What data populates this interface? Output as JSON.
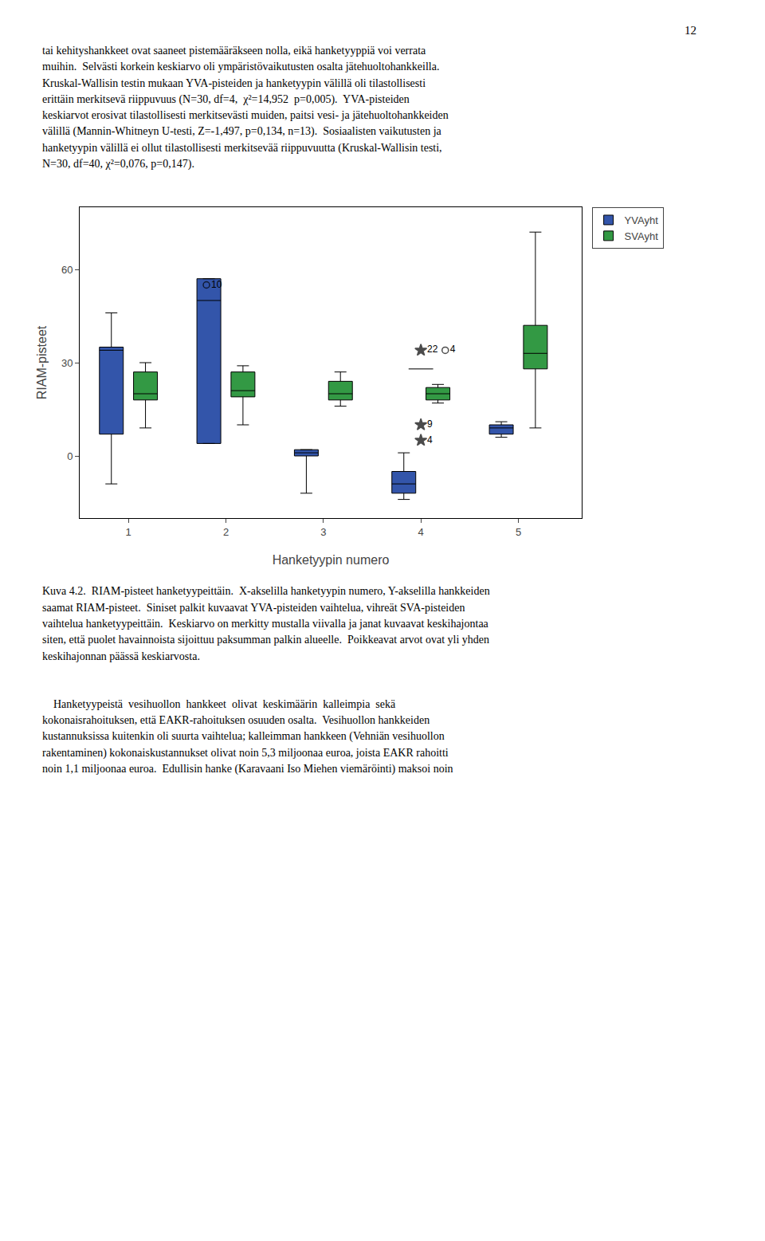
{
  "chart_data": {
    "type": "box",
    "xlabel": "Hanketyypin numero",
    "ylabel": "RIAM-pisteet",
    "x": [
      1,
      2,
      3,
      4,
      5
    ],
    "xlim": [
      0.5,
      5.65
    ],
    "xticks": [
      1,
      2,
      3,
      4,
      5
    ],
    "ylim": [
      -20,
      80
    ],
    "yticks": [
      0,
      30,
      60
    ],
    "grid": false,
    "legend": "upper right",
    "series": [
      {
        "name": "YVAyht",
        "color": "#3355aa",
        "q1": [
          7,
          4,
          0,
          -12,
          7
        ],
        "median": [
          34,
          50,
          1,
          -9,
          9
        ],
        "q3": [
          35,
          57,
          2,
          -5,
          10
        ],
        "whislo": [
          -9,
          4,
          -12,
          -14,
          6
        ],
        "whishi": [
          46,
          57,
          2,
          1,
          11
        ]
      },
      {
        "name": "SVAyht",
        "color": "#339944",
        "q1": [
          18,
          19,
          18,
          18,
          28
        ],
        "median": [
          20,
          21,
          20,
          20,
          33
        ],
        "q3": [
          27,
          27,
          24,
          22,
          42
        ],
        "whislo": [
          9,
          10,
          16,
          17,
          9
        ],
        "whishi": [
          30,
          29,
          27,
          23,
          72
        ]
      }
    ],
    "outliers": [
      {
        "group": 2,
        "y": 55,
        "label": "10",
        "marker": "circle"
      },
      {
        "group": 4,
        "y": 34,
        "label": "22",
        "marker": "star"
      },
      {
        "group": 4,
        "y": 34,
        "label": "4",
        "marker": "circle"
      },
      {
        "group": 4,
        "y": 28,
        "marker": "line"
      },
      {
        "group": 4,
        "y": 10,
        "label": "9",
        "marker": "star"
      },
      {
        "group": 4,
        "y": 5,
        "label": "4",
        "marker": "star"
      }
    ]
  },
  "page_number": "12",
  "top_text": "tai kehityshankkeet ovat saaneet pistemääräkseen nolla, eikä hanketyyppiä voi verrata\nmuihin.  Selvästi korkein keskiarvo oli ympäristövaikutusten osalta jätehuoltohankkeilla.\nKruskal-Wallisin testin mukaan YVA-pisteiden ja hanketyypin välillä oli tilastollisesti\nerittäin merkitsevä riippuvuus (N=30, df=4,  χ²=14,952  p=0,005).  YVA-pisteiden\nkeskiarvot erosivat tilastollisesti merkitsevästi muiden, paitsi vesi- ja jätehuoltohankkeiden\nvälillä (Mannin-Whitneyn U-testi, Z=-1,497, p=0,134, n=13).  Sosiaalisten vaikutusten ja\nhanketyypin välillä ei ollut tilastollisesti merkitsevää riippuvuutta (Kruskal-Wallisin testi,\nN=30, df=40, χ²=0,076, p=0,147).",
  "caption_text": "Kuva 4.2.  RIAM-pisteet hanketyypeittäin.  X-akselilla hanketyypin numero, Y-akselilla hankkeiden\nsaamat RIAM-pisteet.  Siniset palkit kuvaavat YVA-pisteiden vaihtelua, vihreät SVA-pisteiden\nvaihtelua hanketyypeittäin.  Keskiarvo on merkitty mustalla viivalla ja janat kuvaavat keskihajontaa\nsiten, että puolet havainnoista sijoittuu paksumman palkin alueelle.  Poikkeavat arvot ovat yli yhden\nkeskihajonnan päässä keskiarvosta.",
  "bottom_text": "    Hanketyypeistä  vesihuollon  hankkeet  olivat  keskimäärin  kalleimpia  sekä\nkokonaisrahoituksen, että EAKR-rahoituksen osuuden osalta.  Vesihuollon hankkeiden\nkustannuksissa kuitenkin oli suurta vaihtelua; kalleimman hankkeen (Vehniän vesihuollon\nrakentaminen) kokonaiskustannukset olivat noin 5,3 miljoonaa euroa, joista EAKR rahoitti\nnoin 1,1 miljoonaa euroa.  Edullisin hanke (Karavaani Iso Miehen viemäröinti) maksoi noin"
}
